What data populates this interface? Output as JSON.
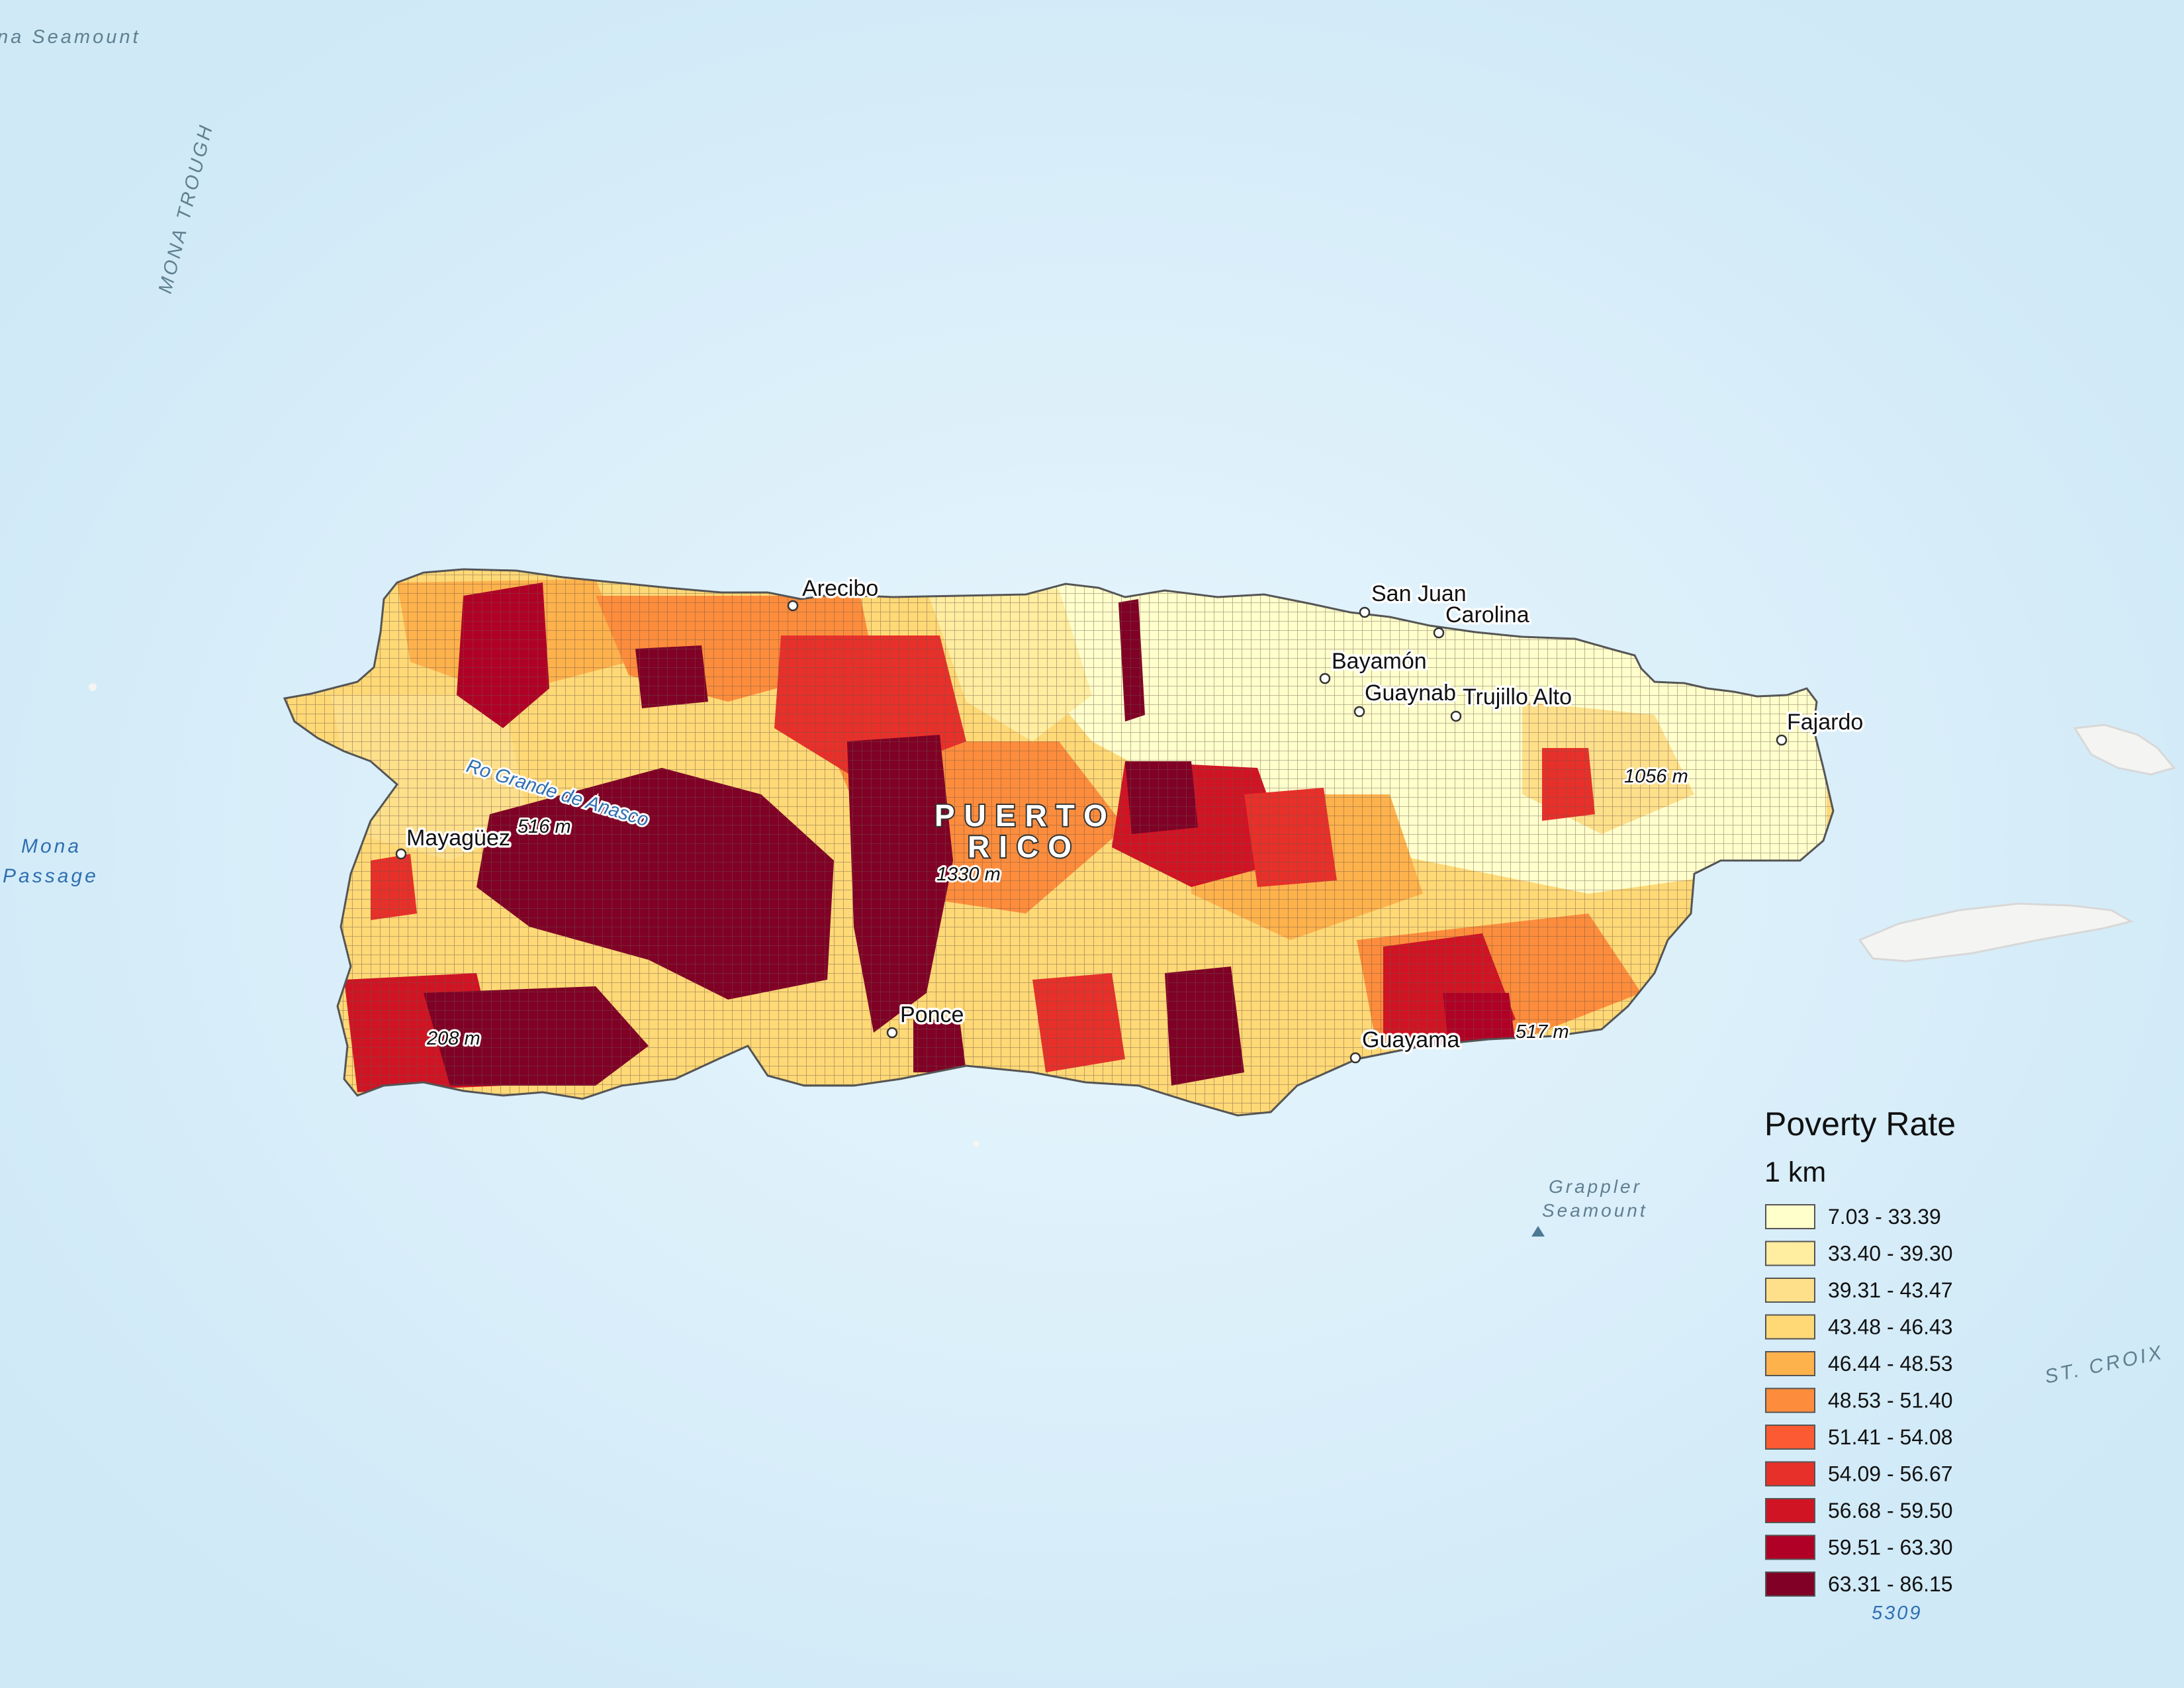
{
  "colors": {
    "ocean": "#d4ecf8",
    "ocean_light": "#e6f5fd",
    "grid_line": "#6b5348",
    "classes": [
      "#ffffcc",
      "#ffeda0",
      "#fee08b",
      "#fed976",
      "#feb24c",
      "#fd8d3c",
      "#fc5a32",
      "#e8302a",
      "#d01424",
      "#b10026",
      "#800026"
    ]
  },
  "ocean_labels": {
    "seamount_top": "na Seamount",
    "mona_trough": "MONA TROUGH",
    "mona_passage_1": "Mona",
    "mona_passage_2": "Passage",
    "grappler_1": "Grappler",
    "grappler_2": "Seamount",
    "st_croix": "ST. CROIX"
  },
  "island": {
    "name_1": "PUERTO",
    "name_2": "RICO",
    "river": "Ro Grande de Anasco"
  },
  "cities": [
    {
      "id": "arecibo",
      "name": "Arecibo"
    },
    {
      "id": "san-juan",
      "name": "San Juan"
    },
    {
      "id": "carolina",
      "name": "Carolina"
    },
    {
      "id": "bayamon",
      "name": "Bayamón"
    },
    {
      "id": "guaynabo",
      "name": "Guaynab"
    },
    {
      "id": "trujillo-alto",
      "name": "Trujillo Alto"
    },
    {
      "id": "fajardo",
      "name": "Fajardo"
    },
    {
      "id": "mayaguez",
      "name": "Mayagüez"
    },
    {
      "id": "ponce",
      "name": "Ponce"
    },
    {
      "id": "guayama",
      "name": "Guayama"
    }
  ],
  "elevations": [
    "516 m",
    "1330 m",
    "1056 m",
    "208 m",
    "517 m"
  ],
  "legend": {
    "title": "Poverty Rate",
    "subtitle": "1 km",
    "items": [
      "7.03 - 33.39",
      "33.40 - 39.30",
      "39.31 - 43.47",
      "43.48 - 46.43",
      "46.44 - 48.53",
      "48.53 - 51.40",
      "51.41 - 54.08",
      "54.09 - 56.67",
      "56.68 - 59.50",
      "59.51 - 63.30",
      "63.31 - 86.15"
    ],
    "source_number": "5309"
  }
}
